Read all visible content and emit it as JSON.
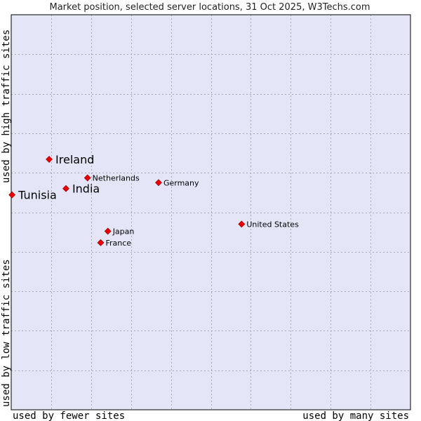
{
  "chart_data": {
    "type": "scatter",
    "title": "Market position, selected server locations, 31 Oct 2025, W3Techs.com",
    "xlabel_low": "used by fewer sites",
    "xlabel_high": "used by many sites",
    "ylabel_low": "used by low traffic sites",
    "ylabel_high": "used by high traffic sites",
    "xlim": [
      0,
      100
    ],
    "ylim": [
      0,
      100
    ],
    "grid": true,
    "colors": {
      "plot_bg": "#e4e6f8",
      "grid": "#a8a8b4",
      "marker": "#ee0000",
      "marker_edge": "#880000"
    },
    "points": [
      {
        "name": "Ireland",
        "x": 9.5,
        "y": 63.4,
        "emphasis": true
      },
      {
        "name": "Netherlands",
        "x": 19.1,
        "y": 58.7,
        "emphasis": false
      },
      {
        "name": "Germany",
        "x": 36.9,
        "y": 57.5,
        "emphasis": false
      },
      {
        "name": "India",
        "x": 13.7,
        "y": 56.0,
        "emphasis": true
      },
      {
        "name": "Tunisia",
        "x": 0.2,
        "y": 54.4,
        "emphasis": true
      },
      {
        "name": "United States",
        "x": 57.7,
        "y": 47.0,
        "emphasis": false
      },
      {
        "name": "Japan",
        "x": 24.2,
        "y": 45.2,
        "emphasis": false
      },
      {
        "name": "France",
        "x": 22.4,
        "y": 42.3,
        "emphasis": false
      }
    ]
  }
}
